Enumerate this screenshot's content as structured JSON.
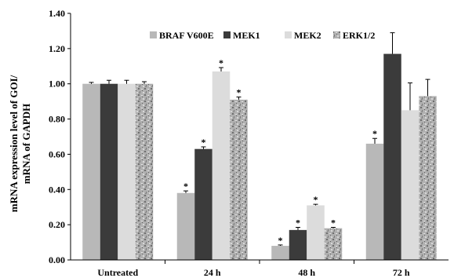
{
  "chart_data": {
    "type": "bar",
    "ylabel_lines": [
      "mRNA expression level of GOI/",
      "mRNA of GAPDH"
    ],
    "ylim": [
      0,
      1.4
    ],
    "yticks": [
      "0.00",
      "0.20",
      "0.40",
      "0.60",
      "0.80",
      "1.00",
      "1.20",
      "1.40"
    ],
    "categories": [
      "Untreated",
      "24 h",
      "48 h",
      "72 h"
    ],
    "legend_position": "top",
    "grid": false,
    "significance_marker": "*",
    "series": [
      {
        "name": "BRAF V600E",
        "color": "#b8b8b8",
        "pattern": "solid",
        "values": [
          1.0,
          0.38,
          0.08,
          0.66
        ],
        "errors": [
          0.008,
          0.012,
          0.005,
          0.03
        ],
        "significant": [
          false,
          true,
          true,
          true
        ]
      },
      {
        "name": "MEK1",
        "color": "#3b3b3b",
        "pattern": "solid",
        "values": [
          1.0,
          0.63,
          0.17,
          1.17
        ],
        "errors": [
          0.02,
          0.012,
          0.015,
          0.12
        ],
        "significant": [
          false,
          true,
          true,
          false
        ]
      },
      {
        "name": "MEK2",
        "color": "#dcdcdc",
        "pattern": "solid",
        "values": [
          1.0,
          1.07,
          0.31,
          0.85
        ],
        "errors": [
          0.02,
          0.022,
          0.006,
          0.155
        ],
        "significant": [
          false,
          true,
          true,
          false
        ]
      },
      {
        "name": "ERK1/2",
        "color": "#a6a6a6",
        "pattern": "speckle",
        "values": [
          1.0,
          0.91,
          0.18,
          0.93
        ],
        "errors": [
          0.012,
          0.015,
          0.005,
          0.095
        ],
        "significant": [
          false,
          true,
          true,
          false
        ]
      }
    ]
  }
}
